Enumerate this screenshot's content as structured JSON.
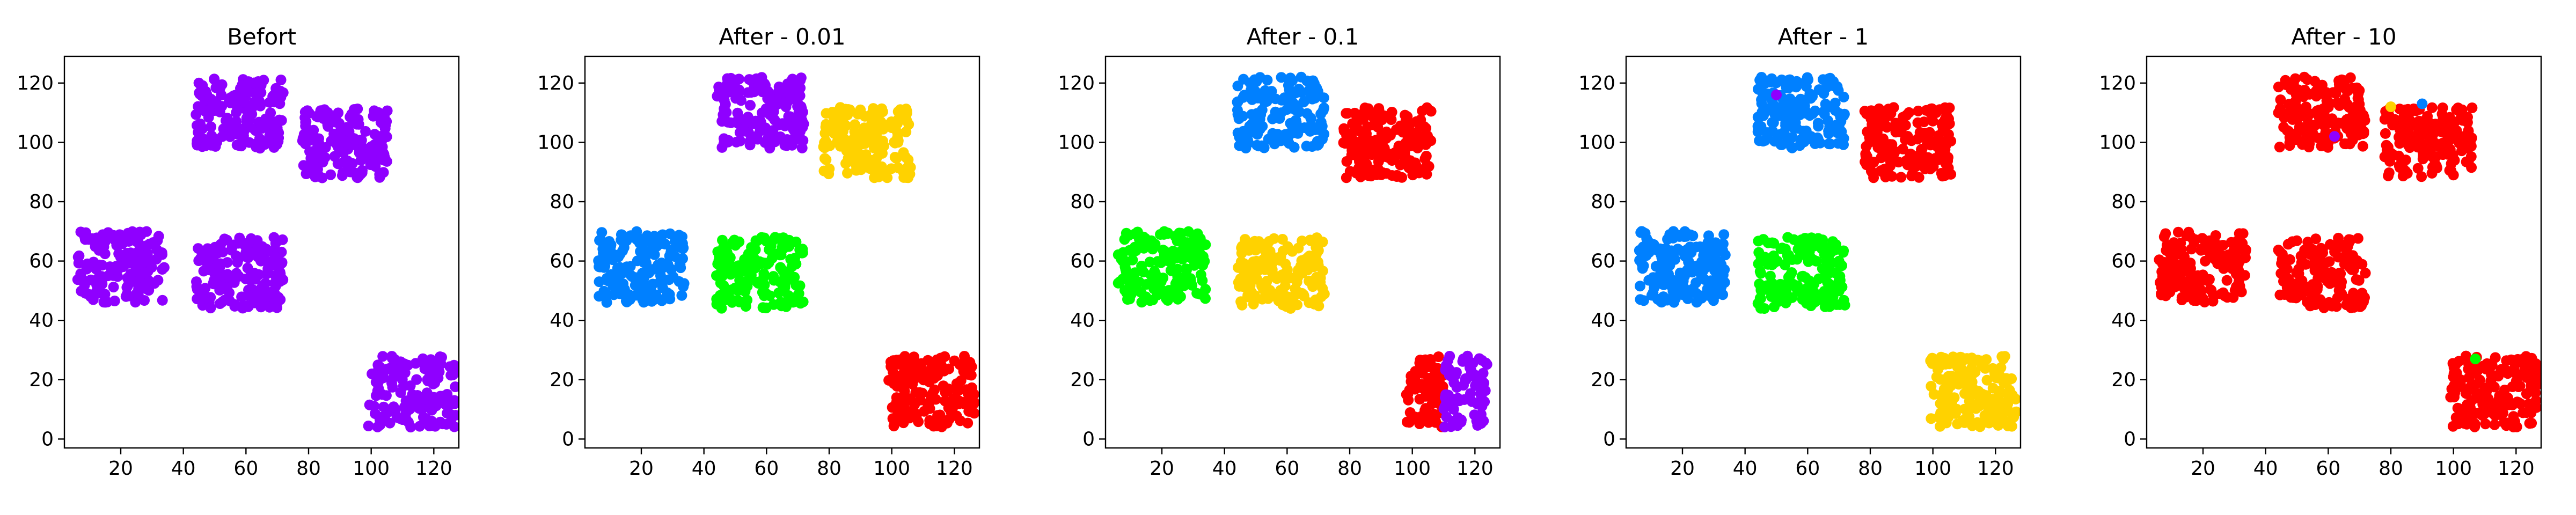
{
  "figure": {
    "titles": [
      "Befort",
      "After - 0.01",
      "After - 0.1",
      "After - 1",
      "After - 10"
    ]
  },
  "colors": {
    "purple": "#8f00ff",
    "blue": "#0080ff",
    "green": "#00ff00",
    "yellow": "#ffd200",
    "red": "#ff0000"
  },
  "chart_data": [
    {
      "type": "scatter",
      "title": "Befort",
      "xlim": [
        2,
        128
      ],
      "ylim": [
        -3,
        129
      ],
      "xticks": [
        20,
        40,
        60,
        80,
        100,
        120
      ],
      "yticks": [
        0,
        20,
        40,
        60,
        80,
        100,
        120
      ],
      "clusters": [
        {
          "center": [
            20,
            58
          ],
          "half_width": 14,
          "half_height": 12,
          "n": 160,
          "color": "#8f00ff"
        },
        {
          "center": [
            58,
            56
          ],
          "half_width": 14,
          "half_height": 12,
          "n": 160,
          "color": "#8f00ff"
        },
        {
          "center": [
            58,
            110
          ],
          "half_width": 14,
          "half_height": 12,
          "n": 160,
          "color": "#8f00ff"
        },
        {
          "center": [
            92,
            100
          ],
          "half_width": 14,
          "half_height": 12,
          "n": 160,
          "color": "#8f00ff"
        },
        {
          "center": [
            113,
            16
          ],
          "half_width": 14,
          "half_height": 12,
          "n": 160,
          "color": "#8f00ff"
        }
      ],
      "extra_points": []
    },
    {
      "type": "scatter",
      "title": "After - 0.01",
      "xlim": [
        2,
        128
      ],
      "ylim": [
        -3,
        129
      ],
      "xticks": [
        20,
        40,
        60,
        80,
        100,
        120
      ],
      "yticks": [
        0,
        20,
        40,
        60,
        80,
        100,
        120
      ],
      "clusters": [
        {
          "center": [
            20,
            58
          ],
          "half_width": 14,
          "half_height": 12,
          "n": 160,
          "color": "#0080ff"
        },
        {
          "center": [
            58,
            56
          ],
          "half_width": 14,
          "half_height": 12,
          "n": 160,
          "color": "#00ff00"
        },
        {
          "center": [
            58,
            110
          ],
          "half_width": 14,
          "half_height": 12,
          "n": 160,
          "color": "#8f00ff"
        },
        {
          "center": [
            92,
            100
          ],
          "half_width": 14,
          "half_height": 12,
          "n": 160,
          "color": "#ffd200"
        },
        {
          "center": [
            113,
            16
          ],
          "half_width": 14,
          "half_height": 12,
          "n": 160,
          "color": "#ff0000"
        }
      ],
      "extra_points": []
    },
    {
      "type": "scatter",
      "title": "After - 0.1",
      "xlim": [
        2,
        128
      ],
      "ylim": [
        -3,
        129
      ],
      "xticks": [
        20,
        40,
        60,
        80,
        100,
        120
      ],
      "yticks": [
        0,
        20,
        40,
        60,
        80,
        100,
        120
      ],
      "clusters": [
        {
          "center": [
            20,
            58
          ],
          "half_width": 14,
          "half_height": 12,
          "n": 160,
          "color": "#00ff00"
        },
        {
          "center": [
            58,
            56
          ],
          "half_width": 14,
          "half_height": 12,
          "n": 160,
          "color": "#ffd200"
        },
        {
          "center": [
            58,
            110
          ],
          "half_width": 14,
          "half_height": 12,
          "n": 160,
          "color": "#0080ff"
        },
        {
          "center": [
            92,
            100
          ],
          "half_width": 14,
          "half_height": 12,
          "n": 160,
          "color": "#ff0000"
        },
        {
          "center": [
            104,
            16
          ],
          "half_width": 6,
          "half_height": 12,
          "n": 70,
          "color": "#ff0000"
        },
        {
          "center": [
            117,
            16
          ],
          "half_width": 7,
          "half_height": 12,
          "n": 80,
          "color": "#8f00ff"
        }
      ],
      "extra_points": []
    },
    {
      "type": "scatter",
      "title": "After - 1",
      "xlim": [
        2,
        128
      ],
      "ylim": [
        -3,
        129
      ],
      "xticks": [
        20,
        40,
        60,
        80,
        100,
        120
      ],
      "yticks": [
        0,
        20,
        40,
        60,
        80,
        100,
        120
      ],
      "clusters": [
        {
          "center": [
            20,
            58
          ],
          "half_width": 14,
          "half_height": 12,
          "n": 160,
          "color": "#0080ff"
        },
        {
          "center": [
            58,
            56
          ],
          "half_width": 14,
          "half_height": 12,
          "n": 160,
          "color": "#00ff00"
        },
        {
          "center": [
            58,
            110
          ],
          "half_width": 14,
          "half_height": 12,
          "n": 160,
          "color": "#0080ff"
        },
        {
          "center": [
            92,
            100
          ],
          "half_width": 14,
          "half_height": 12,
          "n": 160,
          "color": "#ff0000"
        },
        {
          "center": [
            113,
            16
          ],
          "half_width": 14,
          "half_height": 12,
          "n": 160,
          "color": "#ffd200"
        }
      ],
      "extra_points": [
        {
          "x": 50,
          "y": 116,
          "color": "#8f00ff"
        }
      ]
    },
    {
      "type": "scatter",
      "title": "After - 10",
      "xlim": [
        2,
        128
      ],
      "ylim": [
        -3,
        129
      ],
      "xticks": [
        20,
        40,
        60,
        80,
        100,
        120
      ],
      "yticks": [
        0,
        20,
        40,
        60,
        80,
        100,
        120
      ],
      "clusters": [
        {
          "center": [
            20,
            58
          ],
          "half_width": 14,
          "half_height": 12,
          "n": 160,
          "color": "#ff0000"
        },
        {
          "center": [
            58,
            56
          ],
          "half_width": 14,
          "half_height": 12,
          "n": 160,
          "color": "#ff0000"
        },
        {
          "center": [
            58,
            110
          ],
          "half_width": 14,
          "half_height": 12,
          "n": 160,
          "color": "#ff0000"
        },
        {
          "center": [
            92,
            100
          ],
          "half_width": 14,
          "half_height": 12,
          "n": 160,
          "color": "#ff0000"
        },
        {
          "center": [
            113,
            16
          ],
          "half_width": 14,
          "half_height": 12,
          "n": 160,
          "color": "#ff0000"
        }
      ],
      "extra_points": [
        {
          "x": 62,
          "y": 102,
          "color": "#8f00ff"
        },
        {
          "x": 90,
          "y": 113,
          "color": "#0080ff"
        },
        {
          "x": 107,
          "y": 27,
          "color": "#00ff00"
        },
        {
          "x": 80,
          "y": 112,
          "color": "#ffd200"
        }
      ]
    }
  ]
}
